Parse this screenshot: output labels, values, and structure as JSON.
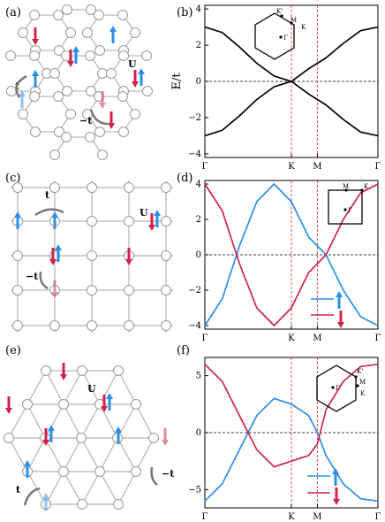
{
  "colors": {
    "spin_up": "#2b8fe8",
    "spin_down": "#d0234a",
    "bond": "#b3b3b3",
    "band": "#000000",
    "guide": "#d62728"
  },
  "panels": [
    {
      "label": "(a)",
      "lattice": "honeycomb",
      "hop_t": "t",
      "hop_mt": "−t",
      "interaction": "U"
    },
    {
      "label": "(b)",
      "plot": true
    },
    {
      "label": "(c)",
      "lattice": "square",
      "hop_t": "t",
      "hop_mt": "−t",
      "interaction": "U"
    },
    {
      "label": "(d)",
      "plot": true
    },
    {
      "label": "(e)",
      "lattice": "triangular",
      "hop_t": "t",
      "hop_mt": "−t",
      "interaction": "U"
    },
    {
      "label": "(f)",
      "plot": true
    }
  ],
  "brillouin": {
    "b": [
      "K'",
      "M",
      "K",
      "Γ"
    ],
    "d": [
      "M",
      "K",
      "Γ"
    ],
    "f": [
      "K'",
      "M",
      "K",
      "Γ"
    ]
  },
  "chart_data": [
    {
      "type": "line",
      "panel": "(b)",
      "ylabel": "E/t",
      "xlabel": "",
      "ylim": [
        -4.2,
        4.2
      ],
      "yticks": [
        4,
        2,
        0,
        -2,
        -4
      ],
      "xticks": [
        "Γ",
        "K",
        "M",
        "Γ"
      ],
      "series": [
        {
          "x": [
            0,
            0.1,
            0.2,
            0.3,
            0.4,
            0.5,
            0.6,
            0.65,
            0.7,
            0.8,
            0.9,
            1.0
          ],
          "values": [
            3.0,
            2.7,
            1.9,
            1.0,
            0.3,
            0.0,
            0.7,
            1.0,
            1.3,
            2.1,
            2.8,
            3.0
          ]
        },
        {
          "x": [
            0,
            0.1,
            0.2,
            0.3,
            0.4,
            0.5,
            0.6,
            0.65,
            0.7,
            0.8,
            0.9,
            1.0
          ],
          "values": [
            -3.0,
            -2.7,
            -1.9,
            -1.0,
            -0.3,
            0.0,
            -0.7,
            -1.0,
            -1.3,
            -2.1,
            -2.8,
            -3.0
          ]
        }
      ]
    },
    {
      "type": "line",
      "panel": "(d)",
      "ylim": [
        -4.2,
        4.2
      ],
      "yticks": [
        4,
        2,
        0,
        -2,
        -4
      ],
      "xticks": [
        "Γ",
        "K",
        "M",
        "Γ"
      ],
      "series": [
        {
          "color": "spin_up",
          "x": [
            0,
            0.1,
            0.2,
            0.3,
            0.4,
            0.5,
            0.6,
            0.7,
            0.8,
            0.9,
            1.0
          ],
          "values": [
            -4.0,
            -2.5,
            0.5,
            3.0,
            4.0,
            3.0,
            1.0,
            0.0,
            -2.0,
            -3.5,
            -4.0
          ]
        },
        {
          "color": "spin_down",
          "x": [
            0,
            0.1,
            0.2,
            0.3,
            0.4,
            0.5,
            0.6,
            0.7,
            0.8,
            0.9,
            1.0
          ],
          "values": [
            4.0,
            2.5,
            -0.5,
            -3.0,
            -4.0,
            -3.0,
            -1.0,
            0.0,
            2.0,
            3.5,
            4.0
          ]
        }
      ]
    },
    {
      "type": "line",
      "panel": "(f)",
      "ylim": [
        -6.6,
        6.6
      ],
      "yticks": [
        5,
        0,
        -5
      ],
      "xticks": [
        "Γ",
        "K",
        "M",
        "Γ"
      ],
      "series": [
        {
          "color": "spin_up",
          "x": [
            0,
            0.1,
            0.2,
            0.3,
            0.4,
            0.5,
            0.6,
            0.65,
            0.7,
            0.8,
            0.9,
            1.0
          ],
          "values": [
            -6.0,
            -4.5,
            -1.5,
            1.5,
            3.0,
            2.5,
            1.5,
            0.0,
            -2.0,
            -4.5,
            -5.8,
            -6.0
          ]
        },
        {
          "color": "spin_down",
          "x": [
            0,
            0.1,
            0.2,
            0.3,
            0.4,
            0.5,
            0.6,
            0.65,
            0.7,
            0.8,
            0.9,
            1.0
          ],
          "values": [
            6.0,
            4.5,
            1.5,
            -1.5,
            -3.0,
            -2.5,
            -2.0,
            -1.0,
            2.0,
            4.5,
            5.8,
            6.0
          ]
        }
      ]
    }
  ]
}
